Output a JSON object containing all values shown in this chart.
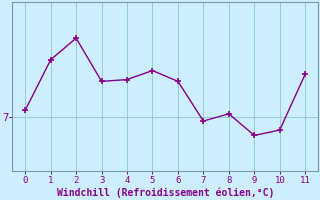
{
  "x": [
    0,
    1,
    2,
    3,
    4,
    5,
    6,
    7,
    8,
    9,
    10,
    11
  ],
  "y": [
    7.2,
    8.6,
    9.2,
    8.0,
    8.05,
    8.3,
    8.0,
    6.9,
    7.1,
    6.5,
    6.65,
    8.2
  ],
  "line_color": "#880088",
  "marker": "+",
  "marker_size": 4,
  "marker_edge_width": 1.2,
  "line_width": 1.0,
  "background_color": "#cceeff",
  "grid_color": "#99cccc",
  "xlabel": "Windchill (Refroidissement éolien,°C)",
  "xlabel_color": "#880088",
  "tick_color": "#880088",
  "spine_color": "#7799aa",
  "ytick_label": "7",
  "ytick_value": 7.0,
  "xlim": [
    -0.5,
    11.5
  ],
  "ylim": [
    5.5,
    10.2
  ],
  "tick_fontsize": 6.5,
  "xlabel_fontsize": 7.0
}
